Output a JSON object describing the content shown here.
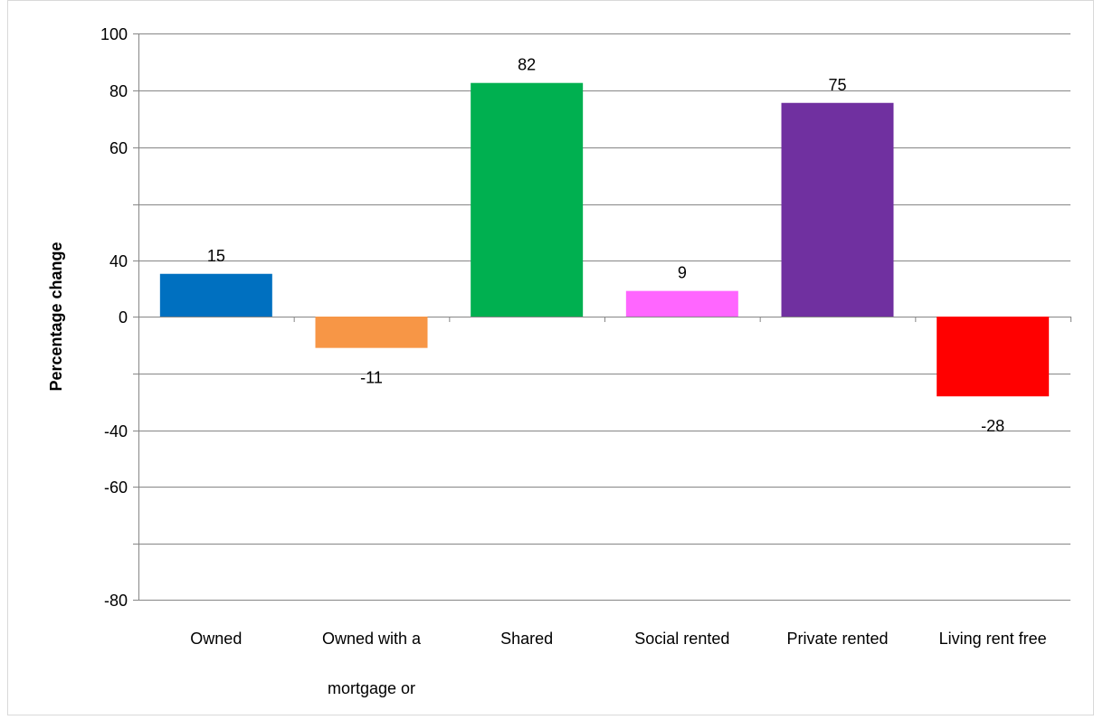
{
  "chart_data": {
    "type": "bar",
    "title": "",
    "xlabel": "",
    "ylabel": "Percentage change",
    "ylim": [
      -80,
      100
    ],
    "grid": true,
    "legend": "none",
    "y_ticks": [
      {
        "value": 100,
        "label": "100"
      },
      {
        "value": 80,
        "label": "80"
      },
      {
        "value": 60,
        "label": "60"
      },
      {
        "value": 40,
        "label": "40"
      },
      {
        "value": 0,
        "label": "0"
      },
      {
        "value": -40,
        "label": "-40"
      },
      {
        "value": -60,
        "label": "-60"
      },
      {
        "value": -80,
        "label": "-80"
      }
    ],
    "categories": [
      {
        "lines": [
          "Owned"
        ]
      },
      {
        "lines": [
          "Owned with a",
          "mortgage or"
        ]
      },
      {
        "lines": [
          "Shared"
        ]
      },
      {
        "lines": [
          "Social rented"
        ]
      },
      {
        "lines": [
          "Private rented"
        ]
      },
      {
        "lines": [
          "Living rent free"
        ]
      }
    ],
    "values": [
      15,
      -11,
      82,
      9,
      75,
      -28
    ],
    "data_labels": [
      "15",
      "-11",
      "82",
      "9",
      "75",
      "-28"
    ],
    "colors": [
      "#0070C0",
      "#F79646",
      "#00B050",
      "#FF66FF",
      "#7030A0",
      "#FF0000"
    ]
  }
}
